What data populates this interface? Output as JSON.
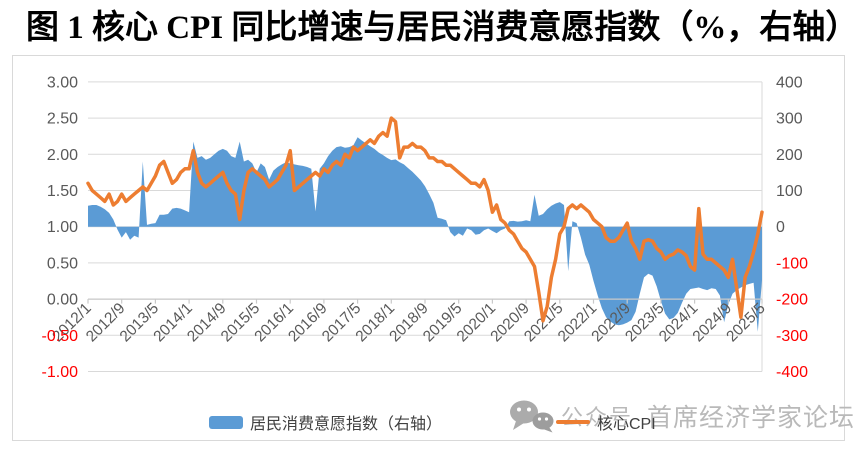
{
  "page_title": "图 1 核心 CPI 同比增速与居民消费意愿指数（%，右轴）",
  "colors": {
    "area_blue": "#5B9BD5",
    "line_orange": "#ED7D31",
    "gridline": "#D9D9D9",
    "axis_line": "#C9C9C9",
    "tick_text": "#595959",
    "negative_tick_text": "#FF0000",
    "watermark_gray": "#B9B9B9"
  },
  "legend": {
    "area_label": "居民消费意愿指数（右轴）",
    "line_label": "核心CPI"
  },
  "watermark": {
    "icon": "wechat-icon",
    "account_label": "公众号",
    "name": "首席经济学家论坛"
  },
  "chart_data": {
    "type": "combo",
    "subtype": "area+line",
    "x_frequency": "monthly",
    "x_start": "2012/1",
    "x_end": "2025/5",
    "x_tick_labels": [
      "2012/1",
      "2012/9",
      "2013/5",
      "2014/1",
      "2014/9",
      "2015/5",
      "2016/1",
      "2016/9",
      "2017/5",
      "2018/1",
      "2018/9",
      "2019/5",
      "2020/1",
      "2020/9",
      "2021/5",
      "2022/1",
      "2022/9",
      "2023/5",
      "2024/1",
      "2024/9",
      "2025/5"
    ],
    "left_axis": {
      "min": -1.0,
      "max": 3.0,
      "step": 0.5,
      "tick_labels": [
        "3.00",
        "2.50",
        "2.00",
        "1.50",
        "1.00",
        "0.50",
        "0.00",
        "-0.50",
        "-1.00"
      ]
    },
    "right_axis": {
      "min": -400,
      "max": 400,
      "step": 100,
      "tick_labels": [
        "400",
        "300",
        "200",
        "100",
        "0",
        "-100",
        "-200",
        "-300",
        "-400"
      ]
    },
    "gridlines": true,
    "legend_position": "bottom",
    "series": [
      {
        "name": "居民消费意愿指数（右轴）",
        "chart_type": "area",
        "axis": "right",
        "color": "#5B9BD5",
        "values_by_year": {
          "2012": [
            58,
            60,
            60,
            55,
            48,
            38,
            20,
            -8,
            -30,
            -15,
            -36,
            -25
          ],
          "2013": [
            -30,
            180,
            5,
            8,
            10,
            33,
            33,
            35,
            50,
            52,
            50,
            45
          ],
          "2014": [
            40,
            235,
            190,
            195,
            185,
            190,
            200,
            210,
            215,
            210,
            195,
            190
          ],
          "2015": [
            235,
            180,
            185,
            175,
            150,
            175,
            165,
            130,
            155,
            165,
            172,
            178
          ],
          "2016": [
            175,
            172,
            170,
            168,
            165,
            160,
            42,
            160,
            175,
            195,
            210,
            220
          ],
          "2017": [
            222,
            218,
            220,
            225,
            247,
            238,
            230,
            222,
            215,
            205,
            198,
            190
          ],
          "2018": [
            184,
            186,
            178,
            172,
            162,
            152,
            140,
            128,
            112,
            90,
            66,
            25
          ],
          "2019": [
            22,
            18,
            -15,
            -27,
            -18,
            -25,
            -5,
            -10,
            -22,
            -20,
            -10,
            -5
          ],
          "2020": [
            -12,
            -18,
            -10,
            -5,
            15,
            16,
            14,
            15,
            18,
            15,
            88,
            30
          ],
          "2021": [
            35,
            48,
            58,
            64,
            68,
            60,
            -123,
            15,
            10,
            -30,
            -77,
            -105
          ],
          "2022": [
            -150,
            -190,
            -225,
            -250,
            -262,
            -270,
            -272,
            -270,
            -265,
            -258,
            -235,
            -185
          ],
          "2023": [
            -140,
            -130,
            -135,
            -165,
            -205,
            -240,
            -256,
            -252,
            -238,
            -210,
            -185,
            -172
          ],
          "2024": [
            -170,
            -168,
            -172,
            -175,
            -170,
            -172,
            -190,
            -264,
            -215,
            -185,
            -175,
            -168
          ],
          "2025": [
            -162,
            -158,
            -155,
            -290,
            -148
          ]
        }
      },
      {
        "name": "核心CPI",
        "chart_type": "line",
        "axis": "left",
        "color": "#ED7D31",
        "stroke_width": 3.5,
        "values_by_year": {
          "2012": [
            1.6,
            1.5,
            1.45,
            1.4,
            1.35,
            1.45,
            1.3,
            1.35,
            1.45,
            1.35,
            1.4,
            1.45
          ],
          "2013": [
            1.5,
            1.55,
            1.5,
            1.6,
            1.7,
            1.85,
            1.9,
            1.75,
            1.6,
            1.65,
            1.75,
            1.8
          ],
          "2014": [
            1.8,
            2.05,
            1.75,
            1.6,
            1.55,
            1.6,
            1.65,
            1.7,
            1.75,
            1.6,
            1.5,
            1.45
          ],
          "2015": [
            1.1,
            1.5,
            1.75,
            1.8,
            1.75,
            1.7,
            1.65,
            1.55,
            1.6,
            1.65,
            1.75,
            1.85
          ],
          "2016": [
            2.05,
            1.5,
            1.55,
            1.6,
            1.65,
            1.7,
            1.75,
            1.7,
            1.8,
            1.75,
            1.85,
            1.9
          ],
          "2017": [
            1.85,
            2.0,
            1.95,
            2.1,
            2.05,
            2.1,
            2.15,
            2.2,
            2.15,
            2.25,
            2.3,
            2.25
          ],
          "2018": [
            2.5,
            2.45,
            1.95,
            2.1,
            2.1,
            2.15,
            2.1,
            2.1,
            2.05,
            1.95,
            1.95,
            1.9
          ],
          "2019": [
            1.9,
            1.85,
            1.85,
            1.8,
            1.75,
            1.7,
            1.65,
            1.6,
            1.6,
            1.55,
            1.65,
            1.5
          ],
          "2020": [
            1.2,
            1.3,
            1.1,
            1.05,
            0.95,
            0.9,
            0.8,
            0.7,
            0.65,
            0.55,
            0.45,
            0.1
          ],
          "2021": [
            -0.3,
            -0.1,
            0.3,
            0.55,
            0.9,
            1.0,
            1.25,
            1.3,
            1.25,
            1.3,
            1.25,
            1.2
          ],
          "2022": [
            1.1,
            1.05,
            1.0,
            0.85,
            0.8,
            0.8,
            0.85,
            0.95,
            1.05,
            0.8,
            0.7,
            0.55
          ],
          "2023": [
            0.8,
            0.82,
            0.8,
            0.7,
            0.65,
            0.55,
            0.6,
            0.62,
            0.68,
            0.65,
            0.6,
            0.45
          ],
          "2024": [
            0.4,
            1.25,
            0.62,
            0.55,
            0.55,
            0.5,
            0.45,
            0.4,
            0.3,
            0.55,
            0.15,
            -0.25
          ],
          "2025": [
            0.3,
            0.45,
            0.65,
            0.9,
            1.2
          ]
        }
      }
    ]
  }
}
